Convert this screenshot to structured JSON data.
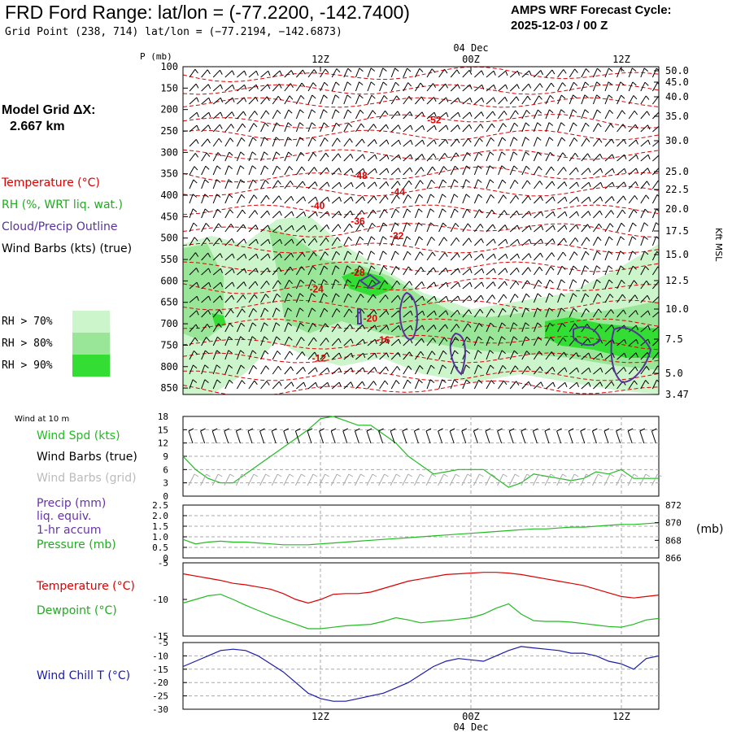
{
  "header": {
    "title": "FRD Ford Range:  lat/lon = (-77.2200, -142.7400)",
    "subtitle": "Grid Point (238, 714) lat/lon = (−77.2194, −142.6873)",
    "cycle_line1": "AMPS WRF Forecast Cycle:",
    "cycle_line2": "2025-12-03 / 00  Z",
    "grid_dx_line1": "Model Grid ΔX:",
    "grid_dx_line2": "2.667 km"
  },
  "legend": {
    "temperature": "Temperature (°C)",
    "rh": "RH (%, WRT liq. wat.)",
    "cloud": "Cloud/Precip Outline",
    "wind_barbs": "Wind Barbs (kts) (true)",
    "rh70": "RH > 70%",
    "rh80": "RH > 80%",
    "rh90": "RH > 90%",
    "wind10m": "Wind at 10 m",
    "wind_spd": "Wind Spd (kts)",
    "barbs_true": "Wind Barbs (true)",
    "barbs_grid": "Wind Barbs (grid)",
    "precip1": "Precip (mm)",
    "precip2": "liq. equiv.",
    "precip3": "1-hr accum",
    "pressure": "Pressure (mb)",
    "pressure_unit": "(mb)",
    "temp2": "Temperature (°C)",
    "dewpoint": "Dewpoint (°C)",
    "windchill": "Wind Chill T (°C)"
  },
  "colors": {
    "temperature": "#dd0000",
    "rh70": "#ccf5cc",
    "rh80": "#99e699",
    "rh90": "#33dd33",
    "cloud": "#553399",
    "wind_spd": "#22bb22",
    "barbs_grid": "#aaaaaa",
    "windchill": "#1a1aaa",
    "precip": "#6633aa"
  },
  "chart_data": [
    {
      "type": "cross-section",
      "name": "vertical profile",
      "ylabel": "P (mb)",
      "y2label": "Kft MSL",
      "p_ticks": [
        100,
        150,
        200,
        250,
        300,
        350,
        400,
        450,
        500,
        550,
        600,
        650,
        700,
        750,
        800,
        850
      ],
      "height_ticks": [
        "50.0",
        "45.0",
        "40.0",
        "35.0",
        "30.0",
        "25.0",
        "22.5",
        "20.0",
        "17.5",
        "15.0",
        "12.5",
        "10.0",
        "7.5",
        "5.0",
        "3.47"
      ],
      "time_ticks": [
        "12Z",
        "00Z",
        "12Z"
      ],
      "date_label": "04 Dec",
      "temperature_labels": [
        {
          "value": "-52",
          "pressure": 232,
          "hour": 19.5
        },
        {
          "value": "-48",
          "pressure": 362,
          "hour": 13.6
        },
        {
          "value": "-44",
          "pressure": 400,
          "hour": 16.6
        },
        {
          "value": "-40",
          "pressure": 432,
          "hour": 10.2
        },
        {
          "value": "-36",
          "pressure": 468,
          "hour": 13.4
        },
        {
          "value": "-32",
          "pressure": 502,
          "hour": 16.5
        },
        {
          "value": "-28",
          "pressure": 588,
          "hour": 13.4
        },
        {
          "value": "-24",
          "pressure": 627,
          "hour": 10.1
        },
        {
          "value": "-20",
          "pressure": 695,
          "hour": 14.4
        },
        {
          "value": "-16",
          "pressure": 745,
          "hour": 15.4
        },
        {
          "value": "-12",
          "pressure": 788,
          "hour": 10.3
        }
      ]
    },
    {
      "type": "line",
      "name": "10 m wind",
      "ylim": [
        0,
        18
      ],
      "yticks": [
        0,
        3,
        6,
        9,
        12,
        15,
        18
      ],
      "x_hours": [
        0,
        1,
        2,
        3,
        4,
        5,
        6,
        7,
        8,
        9,
        10,
        11,
        12,
        13,
        14,
        15,
        16,
        17,
        18,
        19,
        20,
        21,
        22,
        23,
        24,
        25,
        26,
        27,
        28,
        29,
        30,
        31,
        32,
        33,
        34,
        35,
        36,
        37,
        38
      ],
      "series": [
        {
          "name": "Wind Spd (kts)",
          "values": [
            9,
            6,
            4,
            3,
            3,
            5,
            7,
            9,
            11,
            13,
            15,
            17.5,
            18,
            17,
            16,
            16,
            14,
            12,
            9,
            7,
            5,
            5.5,
            6,
            6,
            6,
            4,
            2,
            3,
            5,
            4.5,
            4,
            3.5,
            4,
            5.5,
            5,
            6,
            4,
            4,
            4
          ]
        }
      ]
    },
    {
      "type": "line",
      "name": "precip and pressure",
      "ylim": [
        0,
        2.5
      ],
      "yticks": [
        "0",
        "0.5",
        "1.0",
        "1.5",
        "2.0",
        "2.5"
      ],
      "y2lim": [
        866,
        872
      ],
      "y2ticks": [
        872,
        870,
        868,
        866
      ],
      "series": [
        {
          "name": "Pressure (mb)",
          "values": [
            868.1,
            867.6,
            867.8,
            867.9,
            867.8,
            867.8,
            867.7,
            867.6,
            867.5,
            867.5,
            867.5,
            867.6,
            867.7,
            867.8,
            867.9,
            868.0,
            868.1,
            868.2,
            868.3,
            868.4,
            868.5,
            868.6,
            868.7,
            868.8,
            868.9,
            869.0,
            869.1,
            869.2,
            869.3,
            869.3,
            869.4,
            869.5,
            869.5,
            869.6,
            869.7,
            869.8,
            869.8,
            869.9,
            870.0
          ]
        }
      ]
    },
    {
      "type": "line",
      "name": "temperature and dewpoint",
      "ylim": [
        -15,
        -5
      ],
      "yticks": [
        -5,
        -10,
        -15
      ],
      "series": [
        {
          "name": "Temperature (°C)",
          "values": [
            -6.5,
            -6.8,
            -7.1,
            -7.4,
            -7.8,
            -8.0,
            -8.3,
            -8.6,
            -9.2,
            -10.0,
            -10.5,
            -10.0,
            -9.3,
            -9.2,
            -9.2,
            -9.0,
            -8.5,
            -8.0,
            -7.5,
            -7.2,
            -6.9,
            -6.6,
            -6.5,
            -6.4,
            -6.3,
            -6.3,
            -6.4,
            -6.6,
            -6.9,
            -7.2,
            -7.5,
            -7.8,
            -8.1,
            -8.6,
            -9.1,
            -9.6,
            -9.8,
            -9.6,
            -9.4
          ]
        },
        {
          "name": "Dewpoint (°C)",
          "values": [
            -10.5,
            -10.0,
            -9.5,
            -9.3,
            -10.0,
            -10.8,
            -11.5,
            -12.2,
            -12.8,
            -13.4,
            -14.0,
            -14.0,
            -13.8,
            -13.6,
            -13.5,
            -13.4,
            -13.0,
            -12.5,
            -12.8,
            -13.2,
            -13.0,
            -12.9,
            -12.7,
            -12.5,
            -12.0,
            -11.2,
            -10.6,
            -12.0,
            -12.9,
            -13.0,
            -13.0,
            -13.1,
            -13.3,
            -13.5,
            -13.7,
            -13.8,
            -13.4,
            -12.8,
            -12.6
          ]
        }
      ]
    },
    {
      "type": "line",
      "name": "wind chill",
      "ylim": [
        -30,
        -5
      ],
      "yticks": [
        -5,
        -10,
        -15,
        -20,
        -25,
        -30
      ],
      "series": [
        {
          "name": "Wind Chill T (°C)",
          "values": [
            -14,
            -12,
            -10,
            -8,
            -7.5,
            -8,
            -10,
            -13,
            -16,
            -20,
            -24,
            -26,
            -27,
            -27,
            -26,
            -25,
            -24,
            -22,
            -20,
            -17,
            -14,
            -12,
            -11,
            -11.5,
            -12,
            -10,
            -8,
            -6.5,
            -7,
            -7.5,
            -8,
            -9,
            -9,
            -10,
            -12,
            -13,
            -15,
            -11,
            -10
          ]
        }
      ]
    }
  ]
}
